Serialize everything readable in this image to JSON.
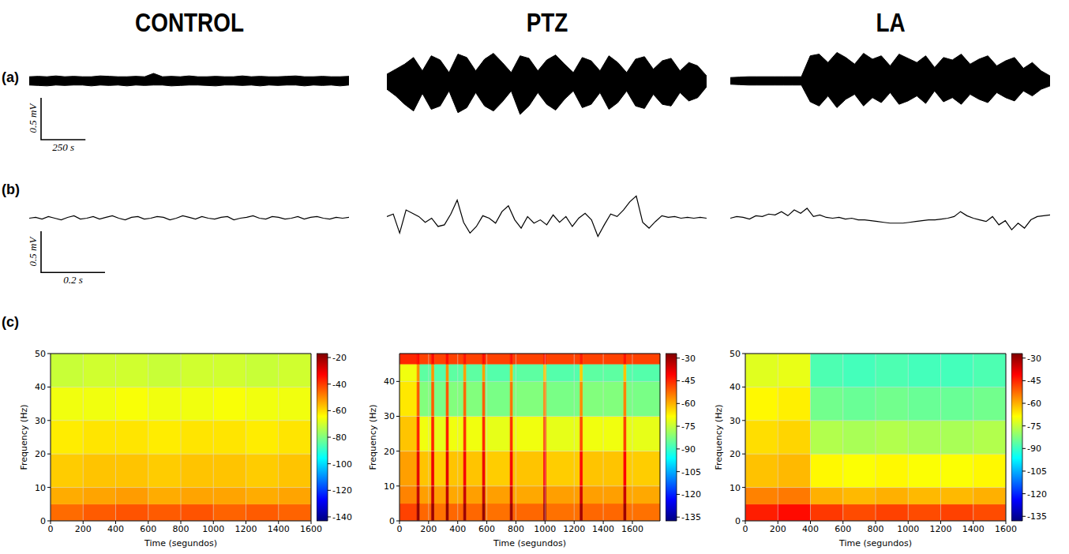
{
  "column_titles": [
    "CONTROL",
    "PTZ",
    "LA"
  ],
  "row_labels": [
    "(a)",
    "(b)",
    "(c)"
  ],
  "scale_bars": [
    {
      "x": 250,
      "y": 0.5,
      "x_label": "250 s",
      "y_label": "0.5 mV"
    },
    {
      "x": 0.2,
      "y": 0.5,
      "x_label": "0.2 s",
      "y_label": "0.5 mV"
    }
  ],
  "chart_data": [
    {
      "type": "area",
      "color": "#000000",
      "tick_labels": false,
      "xlim": [
        0,
        1800
      ],
      "ylim": [
        -0.42,
        0.42
      ],
      "x": [
        0,
        50,
        100,
        150,
        200,
        250,
        300,
        350,
        400,
        450,
        500,
        550,
        600,
        650,
        700,
        750,
        800,
        850,
        900,
        950,
        1000,
        1050,
        1100,
        1150,
        1200,
        1250,
        1300,
        1350,
        1400,
        1450,
        1500,
        1550,
        1600,
        1650,
        1700,
        1750,
        1800
      ],
      "upper": [
        0.05,
        0.055,
        0.05,
        0.06,
        0.05,
        0.055,
        0.05,
        0.05,
        0.06,
        0.055,
        0.05,
        0.05,
        0.055,
        0.05,
        0.09,
        0.05,
        0.055,
        0.05,
        0.06,
        0.05,
        0.05,
        0.055,
        0.05,
        0.05,
        0.06,
        0.05,
        0.055,
        0.05,
        0.05,
        0.055,
        0.06,
        0.05,
        0.05,
        0.055,
        0.05,
        0.05,
        0.055
      ],
      "lower": [
        -0.05,
        -0.055,
        -0.06,
        -0.05,
        -0.055,
        -0.05,
        -0.05,
        -0.06,
        -0.05,
        -0.055,
        -0.05,
        -0.06,
        -0.05,
        -0.055,
        -0.05,
        -0.05,
        -0.06,
        -0.055,
        -0.05,
        -0.05,
        -0.055,
        -0.06,
        -0.05,
        -0.05,
        -0.055,
        -0.05,
        -0.06,
        -0.05,
        -0.055,
        -0.05,
        -0.05,
        -0.06,
        -0.05,
        -0.055,
        -0.05,
        -0.06,
        -0.05
      ]
    },
    {
      "type": "area",
      "color": "#000000",
      "tick_labels": false,
      "xlim": [
        0,
        1800
      ],
      "ylim": [
        -0.42,
        0.42
      ],
      "x": [
        0,
        50,
        100,
        150,
        200,
        250,
        300,
        350,
        400,
        450,
        500,
        550,
        600,
        650,
        700,
        750,
        800,
        850,
        900,
        950,
        1000,
        1050,
        1100,
        1150,
        1200,
        1250,
        1300,
        1350,
        1400,
        1450,
        1500,
        1550,
        1600,
        1650,
        1700,
        1750,
        1800
      ],
      "upper": [
        0.08,
        0.14,
        0.2,
        0.28,
        0.12,
        0.3,
        0.25,
        0.1,
        0.32,
        0.28,
        0.12,
        0.26,
        0.33,
        0.22,
        0.1,
        0.3,
        0.27,
        0.12,
        0.25,
        0.31,
        0.2,
        0.1,
        0.28,
        0.24,
        0.12,
        0.3,
        0.22,
        0.1,
        0.26,
        0.29,
        0.14,
        0.24,
        0.27,
        0.12,
        0.22,
        0.18,
        0.06
      ],
      "lower": [
        -0.1,
        -0.18,
        -0.28,
        -0.36,
        -0.15,
        -0.34,
        -0.3,
        -0.12,
        -0.38,
        -0.32,
        -0.14,
        -0.3,
        -0.36,
        -0.25,
        -0.12,
        -0.4,
        -0.3,
        -0.14,
        -0.28,
        -0.35,
        -0.22,
        -0.12,
        -0.32,
        -0.28,
        -0.14,
        -0.34,
        -0.26,
        -0.12,
        -0.3,
        -0.33,
        -0.16,
        -0.28,
        -0.3,
        -0.14,
        -0.24,
        -0.2,
        -0.07
      ]
    },
    {
      "type": "area",
      "color": "#000000",
      "tick_labels": false,
      "xlim": [
        0,
        1800
      ],
      "ylim": [
        -0.42,
        0.42
      ],
      "x": [
        0,
        50,
        100,
        150,
        200,
        250,
        300,
        350,
        400,
        450,
        500,
        550,
        600,
        650,
        700,
        750,
        800,
        850,
        900,
        950,
        1000,
        1050,
        1100,
        1150,
        1200,
        1250,
        1300,
        1350,
        1400,
        1450,
        1500,
        1550,
        1600,
        1650,
        1700,
        1750,
        1800
      ],
      "upper": [
        0.04,
        0.045,
        0.05,
        0.05,
        0.05,
        0.05,
        0.05,
        0.05,
        0.05,
        0.3,
        0.32,
        0.22,
        0.34,
        0.28,
        0.2,
        0.33,
        0.26,
        0.3,
        0.18,
        0.32,
        0.27,
        0.22,
        0.3,
        0.16,
        0.28,
        0.25,
        0.32,
        0.2,
        0.26,
        0.3,
        0.18,
        0.24,
        0.28,
        0.15,
        0.22,
        0.12,
        0.06
      ],
      "lower": [
        -0.04,
        -0.045,
        -0.05,
        -0.05,
        -0.05,
        -0.05,
        -0.05,
        -0.05,
        -0.05,
        -0.25,
        -0.3,
        -0.18,
        -0.32,
        -0.22,
        -0.16,
        -0.3,
        -0.2,
        -0.26,
        -0.14,
        -0.28,
        -0.24,
        -0.18,
        -0.27,
        -0.12,
        -0.25,
        -0.2,
        -0.28,
        -0.16,
        -0.22,
        -0.26,
        -0.14,
        -0.2,
        -0.24,
        -0.12,
        -0.18,
        -0.1,
        -0.06
      ]
    },
    {
      "type": "line",
      "color": "#000000",
      "tick_labels": false,
      "xlim": [
        0,
        1
      ],
      "ylim": [
        -0.33,
        0.33
      ],
      "x": [
        0,
        0.02,
        0.04,
        0.06,
        0.08,
        0.1,
        0.12,
        0.14,
        0.16,
        0.18,
        0.2,
        0.22,
        0.24,
        0.26,
        0.28,
        0.3,
        0.32,
        0.34,
        0.36,
        0.38,
        0.4,
        0.42,
        0.44,
        0.46,
        0.48,
        0.5,
        0.52,
        0.54,
        0.56,
        0.58,
        0.6,
        0.62,
        0.64,
        0.66,
        0.68,
        0.7,
        0.72,
        0.74,
        0.76,
        0.78,
        0.8,
        0.82,
        0.84,
        0.86,
        0.88,
        0.9,
        0.92,
        0.94,
        0.96,
        0.98,
        1
      ],
      "values": [
        0,
        0.01,
        -0.01,
        0.02,
        0,
        -0.02,
        0.01,
        0.03,
        -0.01,
        0,
        0.02,
        -0.01,
        0.01,
        0.03,
        0,
        -0.02,
        0.01,
        0.02,
        -0.01,
        0,
        0.02,
        0.01,
        -0.02,
        0,
        0.03,
        0.01,
        -0.01,
        0.02,
        0,
        -0.01,
        0.01,
        0.02,
        -0.02,
        0,
        0.01,
        0.03,
        0,
        -0.01,
        0.02,
        0.01,
        -0.01,
        0,
        0.02,
        -0.01,
        0.01,
        0.02,
        0,
        -0.01,
        0.01,
        0,
        0.01
      ]
    },
    {
      "type": "line",
      "color": "#000000",
      "tick_labels": false,
      "xlim": [
        0,
        1
      ],
      "ylim": [
        -0.33,
        0.33
      ],
      "x": [
        0,
        0.02,
        0.04,
        0.06,
        0.08,
        0.1,
        0.12,
        0.14,
        0.16,
        0.18,
        0.2,
        0.22,
        0.24,
        0.26,
        0.28,
        0.3,
        0.32,
        0.34,
        0.36,
        0.38,
        0.4,
        0.42,
        0.44,
        0.46,
        0.48,
        0.5,
        0.52,
        0.54,
        0.56,
        0.58,
        0.6,
        0.62,
        0.64,
        0.66,
        0.68,
        0.7,
        0.72,
        0.74,
        0.76,
        0.78,
        0.8,
        0.82,
        0.84,
        0.86,
        0.88,
        0.9,
        0.92,
        0.94,
        0.96,
        0.98,
        1
      ],
      "values": [
        0.02,
        0.05,
        -0.18,
        0.1,
        0.06,
        0.02,
        -0.05,
        0,
        -0.1,
        -0.08,
        0.05,
        0.22,
        -0.05,
        -0.18,
        -0.1,
        0.03,
        0,
        -0.06,
        0.08,
        0.15,
        -0.02,
        -0.12,
        0.02,
        -0.06,
        -0.02,
        -0.08,
        0.04,
        -0.05,
        0.02,
        -0.1,
        0,
        0.06,
        -0.02,
        -0.22,
        -0.08,
        0.05,
        0.02,
        0.1,
        0.2,
        0.27,
        -0.05,
        -0.12,
        -0.04,
        0.03,
        0.01,
        0.02,
        0,
        0.01,
        0,
        0.01,
        0
      ]
    },
    {
      "type": "line",
      "color": "#000000",
      "tick_labels": false,
      "xlim": [
        0,
        1
      ],
      "ylim": [
        -0.33,
        0.33
      ],
      "x": [
        0,
        0.02,
        0.04,
        0.06,
        0.08,
        0.1,
        0.12,
        0.14,
        0.16,
        0.18,
        0.2,
        0.22,
        0.24,
        0.26,
        0.28,
        0.3,
        0.32,
        0.34,
        0.36,
        0.38,
        0.4,
        0.42,
        0.44,
        0.46,
        0.48,
        0.5,
        0.52,
        0.54,
        0.56,
        0.58,
        0.6,
        0.62,
        0.64,
        0.66,
        0.68,
        0.7,
        0.72,
        0.74,
        0.76,
        0.78,
        0.8,
        0.82,
        0.84,
        0.86,
        0.88,
        0.9,
        0.92,
        0.94,
        0.96,
        0.98,
        1
      ],
      "values": [
        0,
        0.02,
        0.01,
        -0.01,
        0.03,
        0.02,
        0.05,
        0.04,
        0.08,
        0.03,
        0.1,
        0.06,
        0.12,
        0.02,
        0.04,
        0.01,
        0,
        0.01,
        -0.01,
        0,
        -0.02,
        -0.02,
        -0.03,
        -0.04,
        -0.05,
        -0.06,
        -0.06,
        -0.06,
        -0.05,
        -0.04,
        -0.03,
        -0.02,
        -0.02,
        -0.01,
        0,
        0.02,
        0.08,
        0.03,
        0,
        -0.02,
        -0.04,
        0.02,
        -0.08,
        -0.03,
        -0.14,
        -0.06,
        -0.12,
        -0.02,
        0.02,
        0.03,
        0.04
      ]
    },
    {
      "type": "spectrogram",
      "x_label": "Time (segundos)",
      "y_label": "Frequency (Hz)",
      "grid": true,
      "xlim": [
        0,
        1600
      ],
      "ylim": [
        0,
        50
      ],
      "xticks": [
        0,
        200,
        400,
        600,
        800,
        1000,
        1200,
        1400,
        1600
      ],
      "yticks": [
        0,
        10,
        20,
        30,
        40,
        50
      ],
      "time_edges": [
        0,
        200,
        400,
        600,
        800,
        1000,
        1200,
        1400,
        1600
      ],
      "freq_edges": [
        0,
        5,
        10,
        20,
        30,
        40,
        50
      ],
      "power": [
        [
          -46,
          -44,
          -43,
          -44,
          -43,
          -45,
          -44,
          -45
        ],
        [
          -54,
          -53,
          -52,
          -54,
          -53,
          -53,
          -54,
          -53
        ],
        [
          -58,
          -57,
          -57,
          -58,
          -57,
          -57,
          -58,
          -57
        ],
        [
          -62,
          -61,
          -61,
          -62,
          -61,
          -61,
          -62,
          -61
        ],
        [
          -66,
          -66,
          -65,
          -66,
          -66,
          -65,
          -66,
          -66
        ],
        [
          -71,
          -70,
          -70,
          -71,
          -70,
          -70,
          -71,
          -70
        ]
      ],
      "power_range": [
        -143,
        -17
      ],
      "power_ticks": [
        -20,
        -40,
        -60,
        -80,
        -100,
        -120,
        -140
      ]
    },
    {
      "type": "spectrogram",
      "x_label": "Time (segundos)",
      "y_label": "Frequency (Hz)",
      "grid": true,
      "xlim": [
        0,
        1790
      ],
      "ylim": [
        0,
        48
      ],
      "xticks": [
        0,
        200,
        400,
        600,
        800,
        1000,
        1200,
        1400,
        1600
      ],
      "yticks": [
        0,
        10,
        20,
        30,
        40
      ],
      "time_edges": [
        0,
        120,
        140,
        220,
        240,
        320,
        340,
        440,
        460,
        570,
        590,
        760,
        780,
        990,
        1010,
        1240,
        1260,
        1540,
        1560,
        1790
      ],
      "freq_edges": [
        0,
        5,
        10,
        20,
        30,
        40,
        45,
        48
      ],
      "power": [
        [
          -48,
          -29,
          -52,
          -30,
          -53,
          -29,
          -52,
          -30,
          -52,
          -29,
          -53,
          -30,
          -52,
          -30,
          -53,
          -31,
          -52,
          -30,
          -53
        ],
        [
          -55,
          -34,
          -58,
          -35,
          -58,
          -34,
          -59,
          -35,
          -58,
          -34,
          -58,
          -35,
          -59,
          -35,
          -58,
          -36,
          -58,
          -35,
          -59
        ],
        [
          -58,
          -38,
          -62,
          -39,
          -63,
          -38,
          -62,
          -40,
          -62,
          -39,
          -63,
          -40,
          -62,
          -41,
          -63,
          -42,
          -62,
          -41,
          -63
        ],
        [
          -62,
          -44,
          -70,
          -45,
          -71,
          -44,
          -70,
          -46,
          -70,
          -45,
          -71,
          -46,
          -70,
          -48,
          -71,
          -49,
          -70,
          -48,
          -71
        ],
        [
          -66,
          -50,
          -82,
          -51,
          -83,
          -50,
          -82,
          -52,
          -82,
          -51,
          -83,
          -53,
          -82,
          -55,
          -83,
          -56,
          -82,
          -55,
          -83
        ],
        [
          -70,
          -56,
          -86,
          -57,
          -87,
          -56,
          -86,
          -58,
          -86,
          -58,
          -87,
          -60,
          -86,
          -62,
          -87,
          -63,
          -86,
          -62,
          -87
        ],
        [
          -45,
          -42,
          -48,
          -42,
          -48,
          -42,
          -48,
          -43,
          -48,
          -42,
          -48,
          -43,
          -48,
          -43,
          -48,
          -44,
          -48,
          -43,
          -48
        ]
      ],
      "power_range": [
        -137.5,
        -27
      ],
      "power_ticks": [
        -30,
        -45,
        -60,
        -75,
        -90,
        -105,
        -120,
        -135
      ]
    },
    {
      "type": "spectrogram",
      "x_label": "Time (segundos)",
      "y_label": "Frequency (Hz)",
      "grid": true,
      "xlim": [
        0,
        1600
      ],
      "ylim": [
        0,
        50
      ],
      "xticks": [
        0,
        200,
        400,
        600,
        800,
        1000,
        1200,
        1400,
        1600
      ],
      "yticks": [
        0,
        10,
        20,
        30,
        40,
        50
      ],
      "time_edges": [
        0,
        200,
        400,
        600,
        800,
        1000,
        1200,
        1400,
        1600
      ],
      "freq_edges": [
        0,
        5,
        10,
        20,
        30,
        40,
        50
      ],
      "power": [
        [
          -44,
          -42,
          -47,
          -49,
          -48,
          -49,
          -48,
          -49
        ],
        [
          -55,
          -54,
          -60,
          -61,
          -60,
          -61,
          -61,
          -60
        ],
        [
          -62,
          -61,
          -68,
          -69,
          -68,
          -69,
          -69,
          -68
        ],
        [
          -65,
          -64,
          -77,
          -78,
          -77,
          -78,
          -78,
          -77
        ],
        [
          -68,
          -67,
          -84,
          -85,
          -84,
          -85,
          -85,
          -84
        ],
        [
          -72,
          -71,
          -88,
          -89,
          -88,
          -89,
          -89,
          -88
        ]
      ],
      "power_range": [
        -138,
        -27
      ],
      "power_ticks": [
        -30,
        -45,
        -60,
        -75,
        -90,
        -105,
        -120,
        -135
      ]
    }
  ]
}
